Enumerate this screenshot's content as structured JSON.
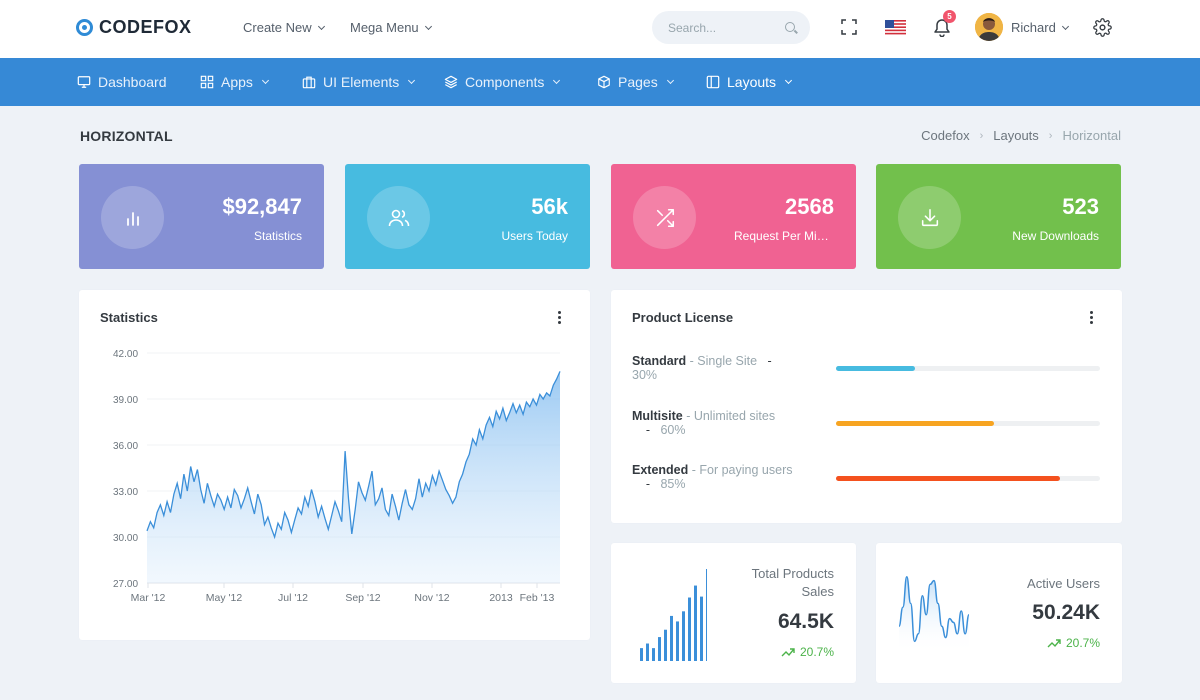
{
  "brand": {
    "name": "CODEFOX"
  },
  "top_menu": [
    {
      "label": "Create New"
    },
    {
      "label": "Mega Menu"
    }
  ],
  "search": {
    "placeholder": "Search..."
  },
  "notifications": {
    "count": "5"
  },
  "user": {
    "name": "Richard"
  },
  "nav": [
    {
      "label": "Dashboard",
      "icon": "monitor-icon"
    },
    {
      "label": "Apps",
      "icon": "grid-icon"
    },
    {
      "label": "UI Elements",
      "icon": "briefcase-icon"
    },
    {
      "label": "Components",
      "icon": "layers-icon"
    },
    {
      "label": "Pages",
      "icon": "box-icon"
    },
    {
      "label": "Layouts",
      "icon": "sidebar-icon"
    }
  ],
  "page": {
    "title": "HORIZONTAL",
    "breadcrumb": [
      "Codefox",
      "Layouts",
      "Horizontal"
    ]
  },
  "stats": [
    {
      "value": "$92,847",
      "label": "Statistics",
      "color": "#8590d4",
      "icon": "bar-chart-icon"
    },
    {
      "value": "56k",
      "label": "Users Today",
      "color": "#47bbe0",
      "icon": "users-icon"
    },
    {
      "value": "2568",
      "label": "Request Per Minute",
      "color": "#f06292",
      "icon": "shuffle-icon"
    },
    {
      "value": "523",
      "label": "New Downloads",
      "color": "#72c04c",
      "icon": "download-icon"
    }
  ],
  "statistics_panel": {
    "title": "Statistics"
  },
  "chart_data": {
    "type": "area",
    "ylim": [
      27,
      42
    ],
    "yticks": [
      "42.00",
      "39.00",
      "36.00",
      "33.00",
      "30.00",
      "27.00"
    ],
    "xticks": [
      "Mar '12",
      "May '12",
      "Jul '12",
      "Sep '12",
      "Nov '12",
      "2013",
      "Feb '13"
    ],
    "series": [
      {
        "values": [
          30.4,
          31.0,
          30.6,
          31.6,
          32.1,
          31.4,
          32.3,
          31.6,
          32.8,
          33.5,
          32.5,
          34.1,
          33.0,
          34.6,
          33.6,
          34.4,
          33.1,
          32.2,
          33.5,
          32.7,
          32.0,
          32.8,
          32.4,
          31.8,
          32.6,
          31.9,
          33.1,
          32.7,
          31.9,
          32.5,
          33.2,
          32.3,
          31.5,
          32.8,
          32.1,
          30.8,
          31.3,
          30.6,
          30.0,
          30.9,
          30.5,
          31.6,
          31.1,
          30.3,
          31.1,
          31.9,
          31.5,
          32.6,
          32.0,
          33.1,
          32.3,
          31.3,
          32.0,
          31.2,
          30.5,
          31.4,
          32.3,
          31.7,
          31.0,
          35.6,
          32.5,
          30.2,
          31.8,
          33.6,
          32.9,
          32.4,
          33.3,
          34.3,
          32.1,
          32.5,
          33.2,
          31.8,
          31.4,
          32.8,
          32.0,
          31.1,
          32.2,
          33.1,
          32.1,
          31.8,
          32.5,
          33.8,
          32.6,
          33.5,
          33.0,
          34.0,
          33.4,
          34.3,
          33.7,
          33.1,
          32.7,
          32.2,
          32.6,
          33.6,
          34.1,
          34.9,
          35.4,
          36.4,
          36.0,
          37.0,
          36.4,
          37.3,
          37.8,
          37.2,
          38.2,
          37.7,
          38.4,
          37.6,
          38.1,
          38.7,
          38.1,
          38.6,
          38.0,
          38.8,
          38.5,
          39.0,
          38.6,
          39.3,
          39.0,
          39.4,
          39.2,
          39.9,
          40.3,
          40.8
        ]
      }
    ]
  },
  "license_panel": {
    "title": "Product License",
    "items": [
      {
        "name": "Standard",
        "desc": "- Single Site",
        "pct": "30%",
        "value": 0.3,
        "color": "#47bbe0"
      },
      {
        "name": "Multisite",
        "desc": "- Unlimited sites",
        "pct": "60%",
        "value": 0.6,
        "color": "#f7a421"
      },
      {
        "name": "Extended",
        "desc": "- For paying users",
        "pct": "85%",
        "value": 0.85,
        "color": "#f4511e"
      }
    ]
  },
  "sales_card": {
    "title_line1": "Total Products",
    "title_line2": "Sales",
    "value": "64.5K",
    "trend": "20.7%",
    "bars": [
      0.14,
      0.19,
      0.14,
      0.26,
      0.34,
      0.49,
      0.43,
      0.54,
      0.69,
      0.82,
      0.7,
      1.0
    ]
  },
  "users_card": {
    "title": "Active Users",
    "value": "50.24K",
    "trend": "20.7%",
    "values": [
      0.3,
      0.55,
      0.95,
      0.6,
      0.1,
      0.2,
      0.7,
      0.45,
      0.85,
      0.9,
      0.6,
      0.3,
      0.15,
      0.4,
      0.35,
      0.2,
      0.5,
      0.2,
      0.45
    ]
  }
}
